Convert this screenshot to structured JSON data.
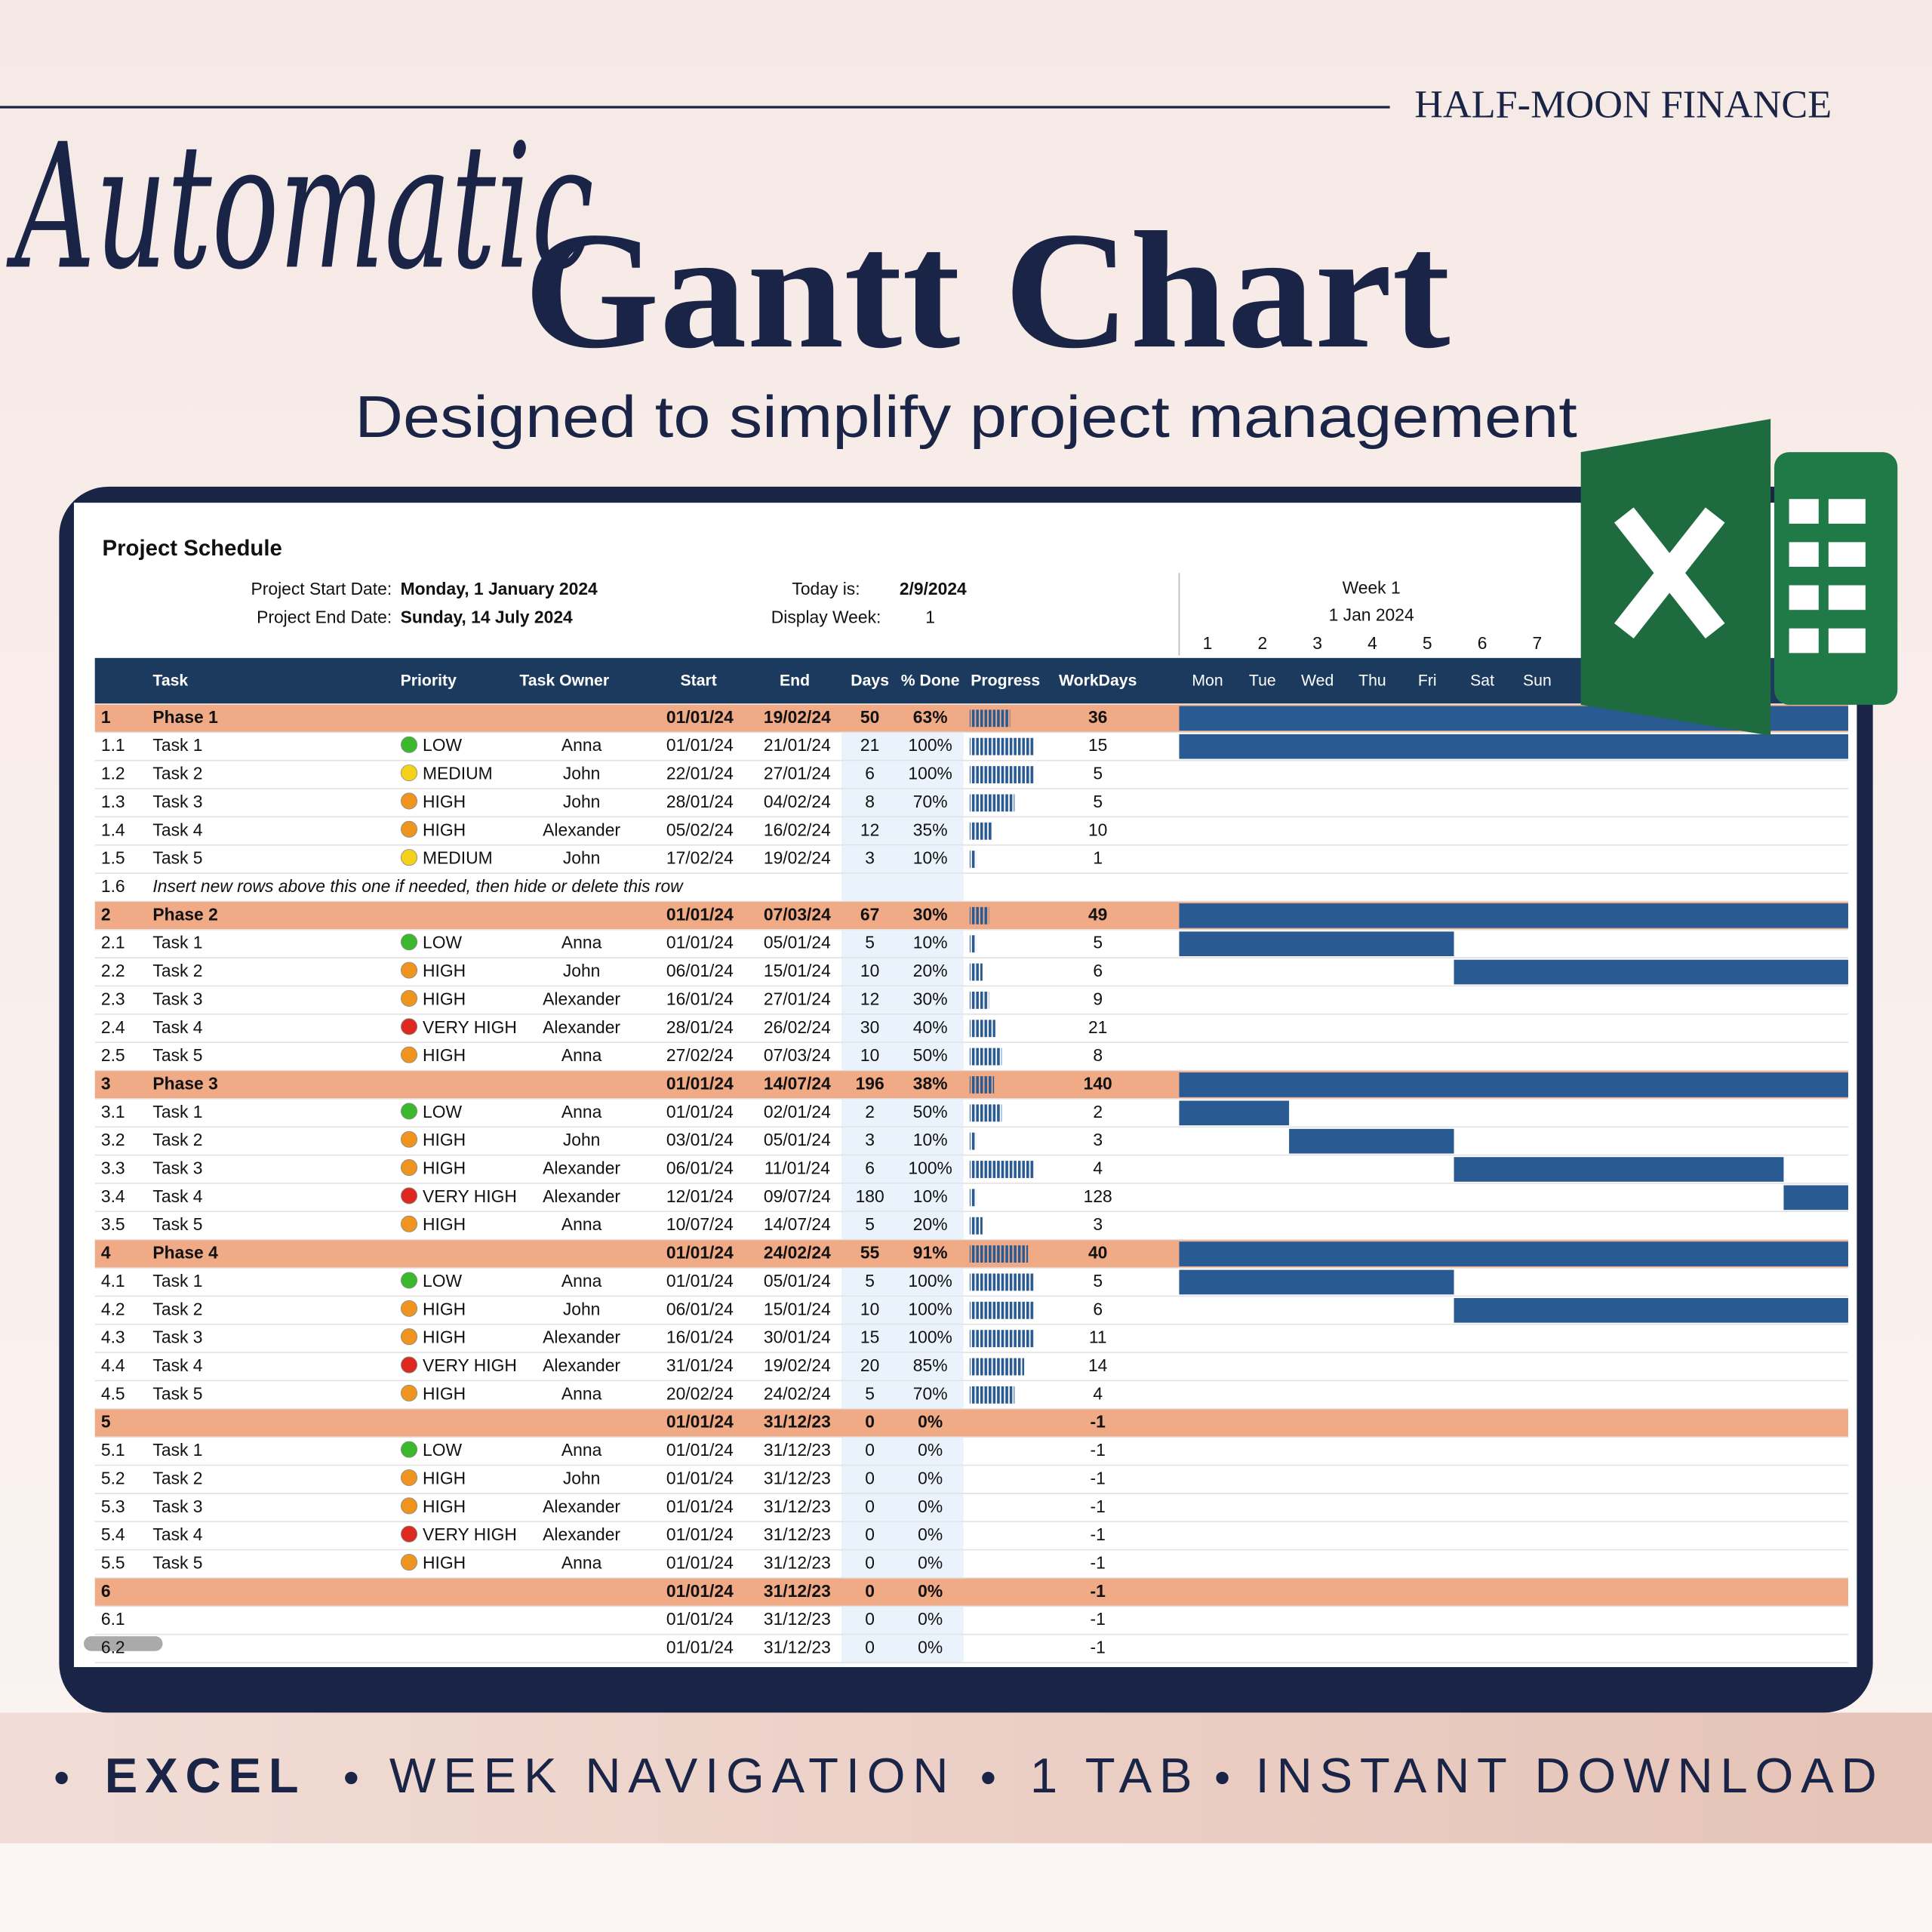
{
  "brand": "HALF-MOON FINANCE",
  "title_script": "Automatic",
  "title": "Gantt Chart",
  "subtitle": "Designed to simplify project management",
  "sheet": {
    "title": "Project Schedule",
    "start_label": "Project Start Date:",
    "start_value": "Monday, 1 January 2024",
    "end_label": "Project End Date:",
    "end_value": "Sunday, 14 July 2024",
    "today_label": "Today is:",
    "today_value": "2/9/2024",
    "week_label": "Display Week:",
    "week_value": "1",
    "week_title": "Week 1",
    "week_date": "1 Jan 2024",
    "day_numbers": [
      "1",
      "2",
      "3",
      "4",
      "5",
      "6",
      "7"
    ],
    "weekdays": [
      "Mon",
      "Tue",
      "Wed",
      "Thu",
      "Fri",
      "Sat",
      "Sun"
    ],
    "columns": [
      "Task",
      "Priority",
      "Task Owner",
      "Start",
      "End",
      "Days",
      "% Done",
      "Progress",
      "WorkDays"
    ],
    "priority_colors": {
      "LOW": "#3cb82e",
      "MEDIUM": "#f5d21a",
      "HIGH": "#ef951f",
      "VERY HIGH": "#dd2a1e"
    },
    "rows": [
      {
        "id": "1",
        "phase": true,
        "task": "Phase 1",
        "start": "01/01/24",
        "end": "19/02/24",
        "days": "50",
        "done": "63%",
        "workdays": "36"
      },
      {
        "id": "1.1",
        "task": "Task 1",
        "priority": "LOW",
        "owner": "Anna",
        "start": "01/01/24",
        "end": "21/01/24",
        "days": "21",
        "done": "100%",
        "workdays": "15"
      },
      {
        "id": "1.2",
        "task": "Task 2",
        "priority": "MEDIUM",
        "owner": "John",
        "start": "22/01/24",
        "end": "27/01/24",
        "days": "6",
        "done": "100%",
        "workdays": "5"
      },
      {
        "id": "1.3",
        "task": "Task 3",
        "priority": "HIGH",
        "owner": "John",
        "start": "28/01/24",
        "end": "04/02/24",
        "days": "8",
        "done": "70%",
        "workdays": "5"
      },
      {
        "id": "1.4",
        "task": "Task 4",
        "priority": "HIGH",
        "owner": "Alexander",
        "start": "05/02/24",
        "end": "16/02/24",
        "days": "12",
        "done": "35%",
        "workdays": "10"
      },
      {
        "id": "1.5",
        "task": "Task 5",
        "priority": "MEDIUM",
        "owner": "John",
        "start": "17/02/24",
        "end": "19/02/24",
        "days": "3",
        "done": "10%",
        "workdays": "1"
      },
      {
        "id": "1.6",
        "note": "Insert new rows above this one if needed, then hide or delete this row"
      },
      {
        "id": "2",
        "phase": true,
        "task": "Phase 2",
        "start": "01/01/24",
        "end": "07/03/24",
        "days": "67",
        "done": "30%",
        "workdays": "49"
      },
      {
        "id": "2.1",
        "task": "Task 1",
        "priority": "LOW",
        "owner": "Anna",
        "start": "01/01/24",
        "end": "05/01/24",
        "days": "5",
        "done": "10%",
        "workdays": "5"
      },
      {
        "id": "2.2",
        "task": "Task 2",
        "priority": "HIGH",
        "owner": "John",
        "start": "06/01/24",
        "end": "15/01/24",
        "days": "10",
        "done": "20%",
        "workdays": "6"
      },
      {
        "id": "2.3",
        "task": "Task 3",
        "priority": "HIGH",
        "owner": "Alexander",
        "start": "16/01/24",
        "end": "27/01/24",
        "days": "12",
        "done": "30%",
        "workdays": "9"
      },
      {
        "id": "2.4",
        "task": "Task 4",
        "priority": "VERY HIGH",
        "owner": "Alexander",
        "start": "28/01/24",
        "end": "26/02/24",
        "days": "30",
        "done": "40%",
        "workdays": "21"
      },
      {
        "id": "2.5",
        "task": "Task 5",
        "priority": "HIGH",
        "owner": "Anna",
        "start": "27/02/24",
        "end": "07/03/24",
        "days": "10",
        "done": "50%",
        "workdays": "8"
      },
      {
        "id": "3",
        "phase": true,
        "task": "Phase 3",
        "start": "01/01/24",
        "end": "14/07/24",
        "days": "196",
        "done": "38%",
        "workdays": "140"
      },
      {
        "id": "3.1",
        "task": "Task 1",
        "priority": "LOW",
        "owner": "Anna",
        "start": "01/01/24",
        "end": "02/01/24",
        "days": "2",
        "done": "50%",
        "workdays": "2"
      },
      {
        "id": "3.2",
        "task": "Task 2",
        "priority": "HIGH",
        "owner": "John",
        "start": "03/01/24",
        "end": "05/01/24",
        "days": "3",
        "done": "10%",
        "workdays": "3"
      },
      {
        "id": "3.3",
        "task": "Task 3",
        "priority": "HIGH",
        "owner": "Alexander",
        "start": "06/01/24",
        "end": "11/01/24",
        "days": "6",
        "done": "100%",
        "workdays": "4"
      },
      {
        "id": "3.4",
        "task": "Task 4",
        "priority": "VERY HIGH",
        "owner": "Alexander",
        "start": "12/01/24",
        "end": "09/07/24",
        "days": "180",
        "done": "10%",
        "workdays": "128"
      },
      {
        "id": "3.5",
        "task": "Task 5",
        "priority": "HIGH",
        "owner": "Anna",
        "start": "10/07/24",
        "end": "14/07/24",
        "days": "5",
        "done": "20%",
        "workdays": "3"
      },
      {
        "id": "4",
        "phase": true,
        "task": "Phase 4",
        "start": "01/01/24",
        "end": "24/02/24",
        "days": "55",
        "done": "91%",
        "workdays": "40"
      },
      {
        "id": "4.1",
        "task": "Task 1",
        "priority": "LOW",
        "owner": "Anna",
        "start": "01/01/24",
        "end": "05/01/24",
        "days": "5",
        "done": "100%",
        "workdays": "5"
      },
      {
        "id": "4.2",
        "task": "Task 2",
        "priority": "HIGH",
        "owner": "John",
        "start": "06/01/24",
        "end": "15/01/24",
        "days": "10",
        "done": "100%",
        "workdays": "6"
      },
      {
        "id": "4.3",
        "task": "Task 3",
        "priority": "HIGH",
        "owner": "Alexander",
        "start": "16/01/24",
        "end": "30/01/24",
        "days": "15",
        "done": "100%",
        "workdays": "11"
      },
      {
        "id": "4.4",
        "task": "Task 4",
        "priority": "VERY HIGH",
        "owner": "Alexander",
        "start": "31/01/24",
        "end": "19/02/24",
        "days": "20",
        "done": "85%",
        "workdays": "14"
      },
      {
        "id": "4.5",
        "task": "Task 5",
        "priority": "HIGH",
        "owner": "Anna",
        "start": "20/02/24",
        "end": "24/02/24",
        "days": "5",
        "done": "70%",
        "workdays": "4"
      },
      {
        "id": "5",
        "phase": true,
        "start": "01/01/24",
        "end": "31/12/23",
        "days": "0",
        "done": "0%",
        "workdays": "-1"
      },
      {
        "id": "5.1",
        "task": "Task 1",
        "priority": "LOW",
        "owner": "Anna",
        "start": "01/01/24",
        "end": "31/12/23",
        "days": "0",
        "done": "0%",
        "workdays": "-1"
      },
      {
        "id": "5.2",
        "task": "Task 2",
        "priority": "HIGH",
        "owner": "John",
        "start": "01/01/24",
        "end": "31/12/23",
        "days": "0",
        "done": "0%",
        "workdays": "-1"
      },
      {
        "id": "5.3",
        "task": "Task 3",
        "priority": "HIGH",
        "owner": "Alexander",
        "start": "01/01/24",
        "end": "31/12/23",
        "days": "0",
        "done": "0%",
        "workdays": "-1"
      },
      {
        "id": "5.4",
        "task": "Task 4",
        "priority": "VERY HIGH",
        "owner": "Alexander",
        "start": "01/01/24",
        "end": "31/12/23",
        "days": "0",
        "done": "0%",
        "workdays": "-1"
      },
      {
        "id": "5.5",
        "task": "Task 5",
        "priority": "HIGH",
        "owner": "Anna",
        "start": "01/01/24",
        "end": "31/12/23",
        "days": "0",
        "done": "0%",
        "workdays": "-1"
      },
      {
        "id": "6",
        "phase": true,
        "start": "01/01/24",
        "end": "31/12/23",
        "days": "0",
        "done": "0%",
        "workdays": "-1"
      },
      {
        "id": "6.1",
        "start": "01/01/24",
        "end": "31/12/23",
        "days": "0",
        "done": "0%",
        "workdays": "-1"
      },
      {
        "id": "6.2",
        "start": "01/01/24",
        "end": "31/12/23",
        "days": "0",
        "done": "0%",
        "workdays": "-1"
      }
    ]
  },
  "features": [
    "EXCEL",
    "WEEK NAVIGATION",
    "1 TAB",
    "INSTANT DOWNLOAD"
  ]
}
